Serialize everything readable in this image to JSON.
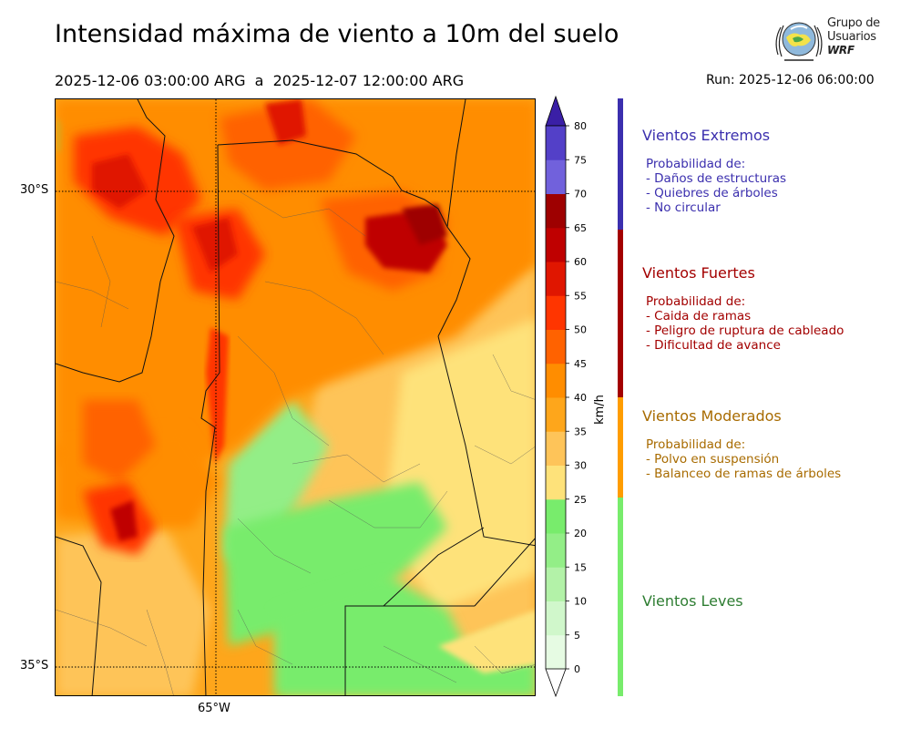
{
  "header": {
    "title": "Intensidad máxima de viento a 10m del suelo",
    "date_range": "2025-12-06 03:00:00 ARG  a  2025-12-07 12:00:00 ARG",
    "run": "Run: 2025-12-06 06:00:00"
  },
  "logo": {
    "line1": "Grupo de",
    "line2": "Usuarios",
    "line3": "WRF"
  },
  "map": {
    "lat_labels": [
      "30°S",
      "35°S"
    ],
    "lon_labels": [
      "65°W"
    ]
  },
  "colorbar": {
    "unit": "km/h",
    "ticks": [
      "0",
      "5",
      "10",
      "15",
      "20",
      "25",
      "30",
      "35",
      "40",
      "45",
      "50",
      "55",
      "60",
      "65",
      "70",
      "75",
      "80"
    ],
    "colors": [
      "#e6fbe3",
      "#d0f7cb",
      "#b3f2a8",
      "#93ee87",
      "#78ec6c",
      "#fee27a",
      "#fec459",
      "#fea61b",
      "#ff8d00",
      "#ff6200",
      "#ff3500",
      "#e01600",
      "#bf0000",
      "#9e0000",
      "#7161dc",
      "#5340c8",
      "#3f22b0"
    ],
    "extend_max_color": "#3a1fa6",
    "extend_min_color": "#ffffff"
  },
  "categories": [
    {
      "name": "Vientos Extremos",
      "color": "#3b2fae",
      "bar_color": "#3b2fae",
      "intro": "Probabilidad de:",
      "items": [
        "- Daños de estructuras",
        "- Quiebres de árboles",
        "- No circular"
      ]
    },
    {
      "name": "Vientos Fuertes",
      "color": "#a30000",
      "bar_color": "#a30000",
      "intro": "Probabilidad de:",
      "items": [
        "- Caida de ramas",
        "- Peligro de ruptura de cableado",
        "- Dificultad de avance"
      ]
    },
    {
      "name": "Vientos Moderados",
      "color": "#a86b00",
      "bar_color": "#ff9d00",
      "intro": "Probabilidad de:",
      "items": [
        "- Polvo en suspensión",
        "- Balanceo de ramas de árboles"
      ]
    },
    {
      "name": "Vientos Leves",
      "color": "#2e7d32",
      "bar_color": "#78ec6c",
      "intro": "",
      "items": []
    }
  ]
}
